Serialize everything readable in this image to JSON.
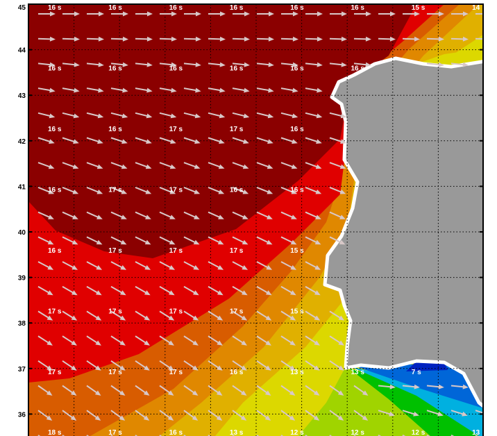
{
  "map": {
    "y_axis_ticks": [
      "45",
      "44",
      "43",
      "42",
      "41",
      "40",
      "39",
      "38",
      "37",
      "36"
    ],
    "colors": {
      "period_18_17": "#8b0000",
      "period_16_17": "#e00000",
      "period_15": "#d85c00",
      "period_14": "#e08800",
      "period_13": "#e0b000",
      "period_12": "#dcd800",
      "period_11": "#a0d400",
      "period_10": "#00c000",
      "period_9": "#00b0e0",
      "period_8": "#0066d8",
      "period_7": "#0022c0",
      "land": "#999999",
      "coast": "#ffffff",
      "arrow": "#d8c8c8"
    },
    "period_label_rows": [
      [
        "16 s",
        "16 s",
        "16 s",
        "16 s",
        "16 s",
        "16 s",
        "15 s",
        "14"
      ],
      [
        "16 s",
        "16 s",
        "16 s",
        "16 s",
        "16 s",
        "16 s"
      ],
      [
        "16 s",
        "16 s",
        "17 s",
        "17 s",
        "16 s"
      ],
      [
        "16 s",
        "17 s",
        "17 s",
        "16 s",
        "16 s"
      ],
      [
        "16 s",
        "17 s",
        "17 s",
        "17 s",
        "15 s"
      ],
      [
        "17 s",
        "17 s",
        "17 s",
        "17 s",
        "15 s"
      ],
      [
        "17 s",
        "17 s",
        "17 s",
        "16 s",
        "13 s",
        "13 s",
        "7 s"
      ],
      [
        "18 s",
        "17 s",
        "16 s",
        "13 s",
        "12 s",
        "12 s",
        "12 s",
        "13"
      ]
    ],
    "wave_direction_deg_by_row": [
      0,
      2,
      6,
      10,
      14,
      18,
      20,
      22,
      24,
      26,
      28,
      30,
      32,
      33,
      34,
      35,
      36,
      36
    ]
  }
}
